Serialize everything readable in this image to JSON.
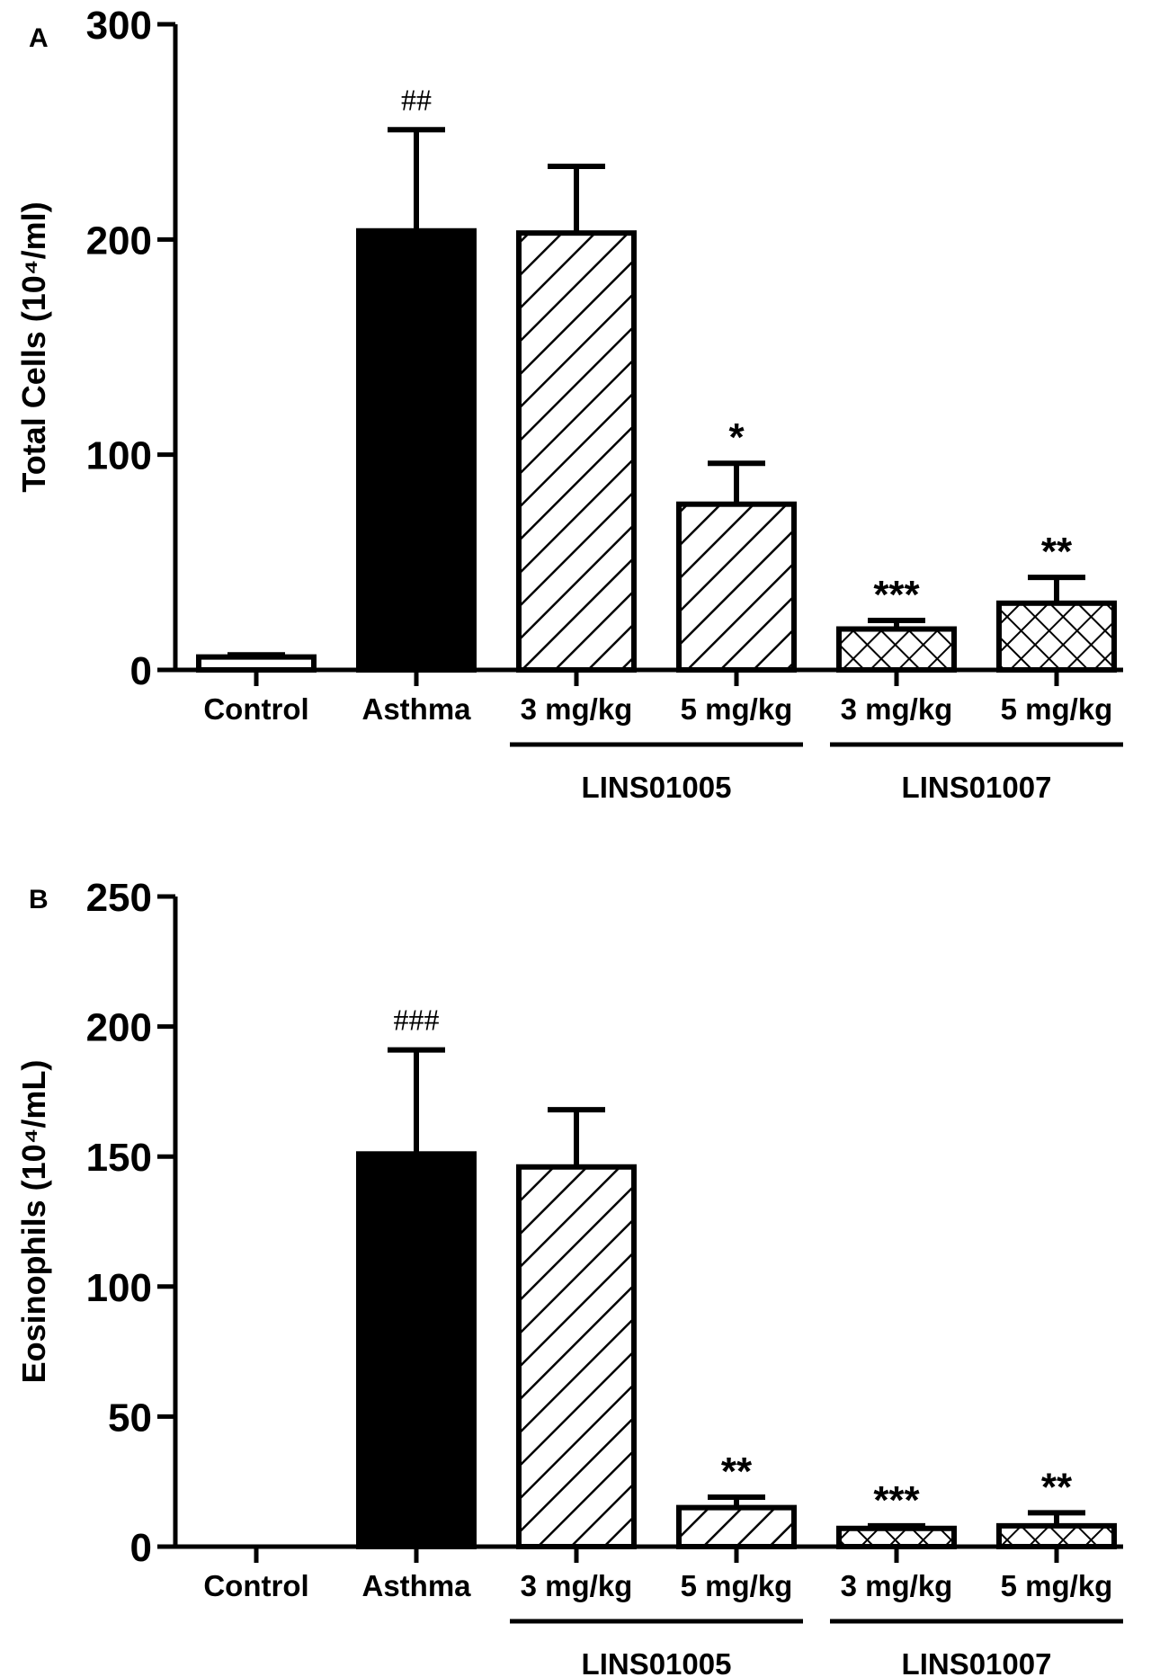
{
  "chart_data": [
    {
      "type": "bar",
      "panel_label": "A",
      "ylabel": "Total Cells (10⁴/ml)",
      "ylim": [
        0,
        300
      ],
      "yticks": [
        "0",
        "100",
        "200",
        "300"
      ],
      "categories": [
        "Control",
        "Asthma",
        "3 mg/kg",
        "5 mg/kg",
        "3 mg/kg",
        "5 mg/kg"
      ],
      "values": [
        6,
        204,
        203,
        77,
        19,
        31
      ],
      "errors": [
        1,
        47,
        31,
        19,
        4,
        12
      ],
      "significance": [
        "",
        "##",
        "",
        "*",
        "***",
        "**"
      ],
      "fills": [
        "white",
        "solid-black",
        "diagonal-hatch",
        "diagonal-hatch",
        "crosshatch",
        "crosshatch"
      ],
      "groups": [
        {
          "label": "LINS01005",
          "categories": [
            2,
            3
          ]
        },
        {
          "label": "LINS01007",
          "categories": [
            4,
            5
          ]
        }
      ]
    },
    {
      "type": "bar",
      "panel_label": "B",
      "ylabel": "Eosinophils (10⁴/mL)",
      "ylim": [
        0,
        250
      ],
      "yticks": [
        "0",
        "50",
        "100",
        "150",
        "200",
        "250"
      ],
      "categories": [
        "Control",
        "Asthma",
        "3 mg/kg",
        "5 mg/kg",
        "3 mg/kg",
        "5 mg/kg"
      ],
      "values": [
        0,
        151,
        146,
        15,
        7,
        8
      ],
      "errors": [
        0,
        40,
        22,
        4,
        1,
        5
      ],
      "significance": [
        "",
        "###",
        "",
        "**",
        "***",
        "**"
      ],
      "fills": [
        "white",
        "solid-black",
        "diagonal-hatch",
        "diagonal-hatch",
        "crosshatch",
        "crosshatch"
      ],
      "groups": [
        {
          "label": "LINS01005",
          "categories": [
            2,
            3
          ]
        },
        {
          "label": "LINS01007",
          "categories": [
            4,
            5
          ]
        }
      ]
    }
  ]
}
